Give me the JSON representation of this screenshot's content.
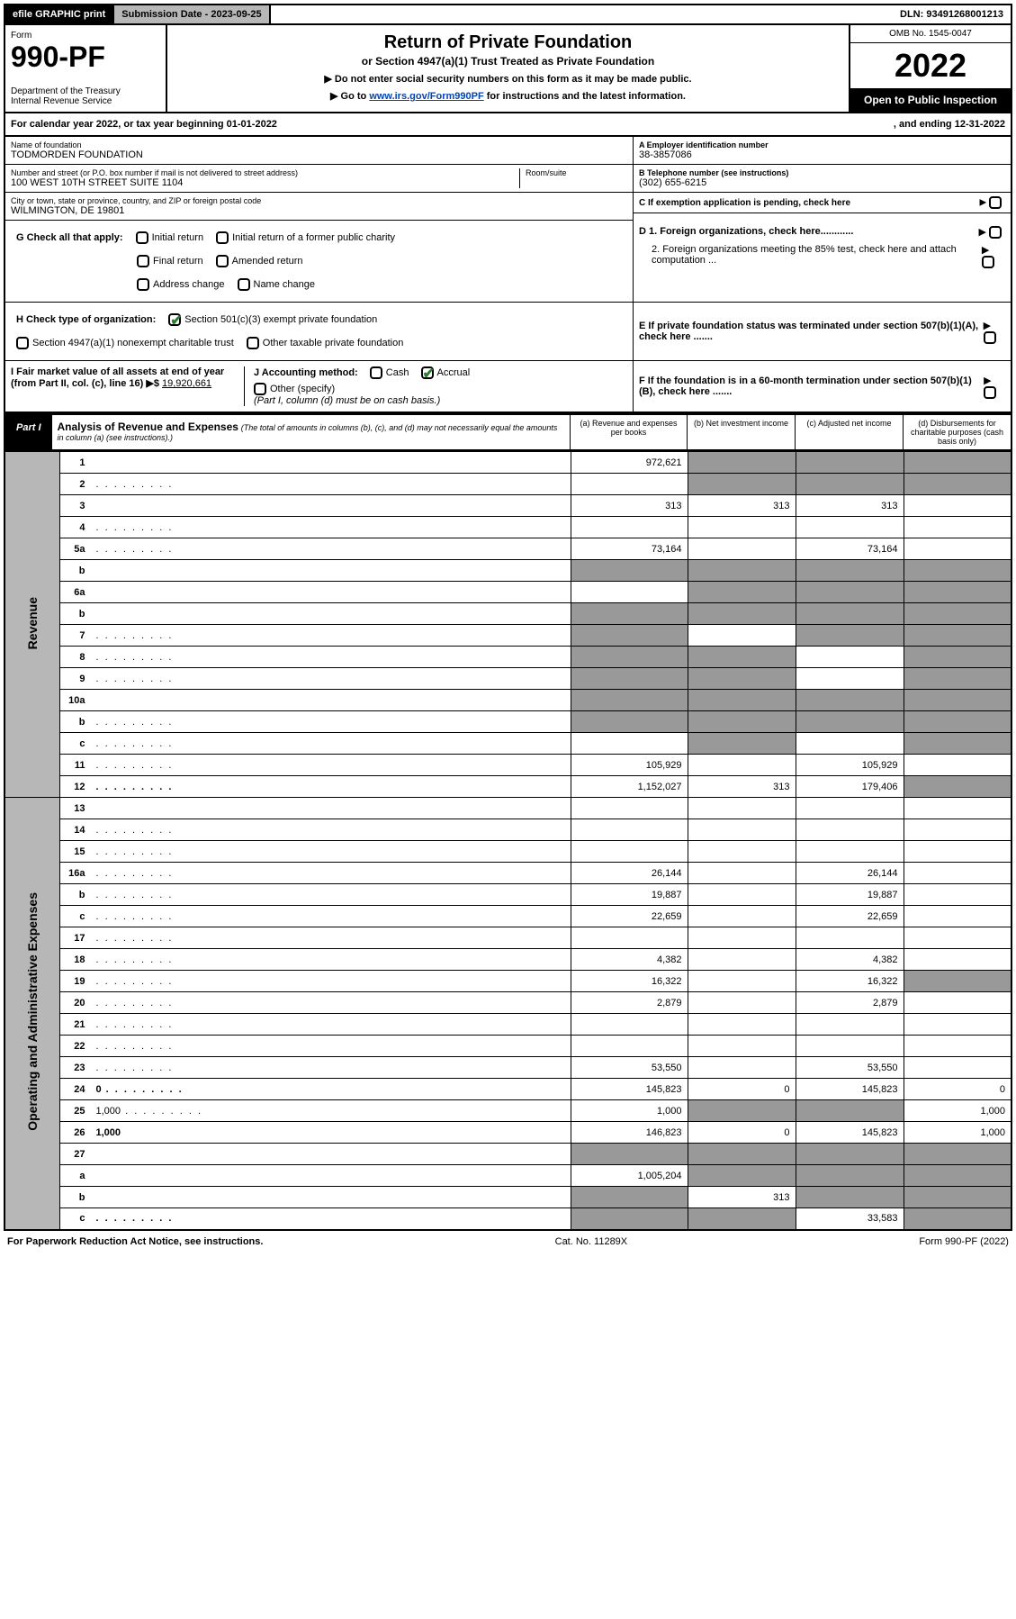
{
  "topbar": {
    "efile": "efile GRAPHIC print",
    "subdate_lbl": "Submission Date - ",
    "subdate": "2023-09-25",
    "dln_lbl": "DLN: ",
    "dln": "93491268001213"
  },
  "header": {
    "form_lbl": "Form",
    "form_no": "990-PF",
    "dept": "Department of the Treasury\nInternal Revenue Service",
    "title": "Return of Private Foundation",
    "subtitle": "or Section 4947(a)(1) Trust Treated as Private Foundation",
    "instr1": "▶ Do not enter social security numbers on this form as it may be made public.",
    "instr2_pre": "▶ Go to ",
    "instr2_link": "www.irs.gov/Form990PF",
    "instr2_post": " for instructions and the latest information.",
    "omb": "OMB No. 1545-0047",
    "year": "2022",
    "inspection": "Open to Public Inspection"
  },
  "calyear": {
    "text_pre": "For calendar year 2022, or tax year beginning ",
    "begin": "01-01-2022",
    "mid": ", and ending ",
    "end": "12-31-2022"
  },
  "entity": {
    "name_lbl": "Name of foundation",
    "name": "TODMORDEN FOUNDATION",
    "addr_lbl": "Number and street (or P.O. box number if mail is not delivered to street address)",
    "addr": "100 WEST 10TH STREET SUITE 1104",
    "room_lbl": "Room/suite",
    "city_lbl": "City or town, state or province, country, and ZIP or foreign postal code",
    "city": "WILMINGTON, DE  19801",
    "ein_lbl": "A Employer identification number",
    "ein": "38-3857086",
    "tel_lbl": "B Telephone number (see instructions)",
    "tel": "(302) 655-6215",
    "c_lbl": "C If exemption application is pending, check here"
  },
  "checks": {
    "g_lbl": "G Check all that apply:",
    "g_initial": "Initial return",
    "g_initial_former": "Initial return of a former public charity",
    "g_final": "Final return",
    "g_amended": "Amended return",
    "g_address": "Address change",
    "g_name": "Name change",
    "h_lbl": "H Check type of organization:",
    "h_501c3": "Section 501(c)(3) exempt private foundation",
    "h_4947": "Section 4947(a)(1) nonexempt charitable trust",
    "h_other": "Other taxable private foundation",
    "i_lbl": "I Fair market value of all assets at end of year (from Part II, col. (c), line 16) ▶$ ",
    "i_val": "19,920,661",
    "j_lbl": "J Accounting method:",
    "j_cash": "Cash",
    "j_accrual": "Accrual",
    "j_other": "Other (specify)",
    "j_note": "(Part I, column (d) must be on cash basis.)",
    "d1": "D 1. Foreign organizations, check here............",
    "d2": "2. Foreign organizations meeting the 85% test, check here and attach computation ...",
    "e": "E  If private foundation status was terminated under section 507(b)(1)(A), check here .......",
    "f": "F  If the foundation is in a 60-month termination under section 507(b)(1)(B), check here ......."
  },
  "part1": {
    "label": "Part I",
    "title": "Analysis of Revenue and Expenses",
    "note": "(The total of amounts in columns (b), (c), and (d) may not necessarily equal the amounts in column (a) (see instructions).)",
    "col_a": "(a)  Revenue and expenses per books",
    "col_b": "(b)  Net investment income",
    "col_c": "(c)  Adjusted net income",
    "col_d": "(d)  Disbursements for charitable purposes (cash basis only)"
  },
  "vlabels": {
    "revenue": "Revenue",
    "expenses": "Operating and Administrative Expenses"
  },
  "rows": [
    {
      "n": "1",
      "d": "",
      "a": "972,621",
      "b": "",
      "c": "",
      "db": true,
      "dc": true,
      "dd": true
    },
    {
      "n": "2",
      "d": "",
      "a": "",
      "b": "",
      "c": "",
      "db": true,
      "dc": true,
      "dd": true,
      "dots": true
    },
    {
      "n": "3",
      "d": "",
      "a": "313",
      "b": "313",
      "c": "313"
    },
    {
      "n": "4",
      "d": "",
      "a": "",
      "b": "",
      "c": "",
      "dots": true
    },
    {
      "n": "5a",
      "d": "",
      "a": "73,164",
      "b": "",
      "c": "73,164",
      "dots": true
    },
    {
      "n": "b",
      "d": "",
      "a": "",
      "b": "",
      "c": "",
      "da": true,
      "db": true,
      "dc": true,
      "dd": true
    },
    {
      "n": "6a",
      "d": "",
      "a": "",
      "b": "",
      "c": "",
      "db": true,
      "dc": true,
      "dd": true
    },
    {
      "n": "b",
      "d": "",
      "a": "",
      "b": "",
      "c": "",
      "da": true,
      "db": true,
      "dc": true,
      "dd": true
    },
    {
      "n": "7",
      "d": "",
      "a": "",
      "b": "",
      "c": "",
      "da": true,
      "dc": true,
      "dd": true,
      "dots": true
    },
    {
      "n": "8",
      "d": "",
      "a": "",
      "b": "",
      "c": "",
      "da": true,
      "db": true,
      "dd": true,
      "dots": true
    },
    {
      "n": "9",
      "d": "",
      "a": "",
      "b": "",
      "c": "",
      "da": true,
      "db": true,
      "dd": true,
      "dots": true
    },
    {
      "n": "10a",
      "d": "",
      "a": "",
      "b": "",
      "c": "",
      "da": true,
      "db": true,
      "dc": true,
      "dd": true
    },
    {
      "n": "b",
      "d": "",
      "a": "",
      "b": "",
      "c": "",
      "da": true,
      "db": true,
      "dc": true,
      "dd": true,
      "dots": true
    },
    {
      "n": "c",
      "d": "",
      "a": "",
      "b": "",
      "c": "",
      "db": true,
      "dd": true,
      "dots": true
    },
    {
      "n": "11",
      "d": "",
      "a": "105,929",
      "b": "",
      "c": "105,929",
      "dots": true
    },
    {
      "n": "12",
      "d": "",
      "a": "1,152,027",
      "b": "313",
      "c": "179,406",
      "bold": true,
      "dd": true,
      "dots": true
    },
    {
      "n": "13",
      "d": "",
      "a": "",
      "b": "",
      "c": ""
    },
    {
      "n": "14",
      "d": "",
      "a": "",
      "b": "",
      "c": "",
      "dots": true
    },
    {
      "n": "15",
      "d": "",
      "a": "",
      "b": "",
      "c": "",
      "dots": true
    },
    {
      "n": "16a",
      "d": "",
      "a": "26,144",
      "b": "",
      "c": "26,144",
      "dots": true
    },
    {
      "n": "b",
      "d": "",
      "a": "19,887",
      "b": "",
      "c": "19,887",
      "dots": true
    },
    {
      "n": "c",
      "d": "",
      "a": "22,659",
      "b": "",
      "c": "22,659",
      "dots": true
    },
    {
      "n": "17",
      "d": "",
      "a": "",
      "b": "",
      "c": "",
      "dots": true
    },
    {
      "n": "18",
      "d": "",
      "a": "4,382",
      "b": "",
      "c": "4,382",
      "dots": true
    },
    {
      "n": "19",
      "d": "",
      "a": "16,322",
      "b": "",
      "c": "16,322",
      "dd": true,
      "dots": true
    },
    {
      "n": "20",
      "d": "",
      "a": "2,879",
      "b": "",
      "c": "2,879",
      "dots": true
    },
    {
      "n": "21",
      "d": "",
      "a": "",
      "b": "",
      "c": "",
      "dots": true
    },
    {
      "n": "22",
      "d": "",
      "a": "",
      "b": "",
      "c": "",
      "dots": true
    },
    {
      "n": "23",
      "d": "",
      "a": "53,550",
      "b": "",
      "c": "53,550",
      "dots": true
    },
    {
      "n": "24",
      "d": "0",
      "a": "145,823",
      "b": "0",
      "c": "145,823",
      "bold": true,
      "dots": true
    },
    {
      "n": "25",
      "d": "1,000",
      "a": "1,000",
      "b": "",
      "c": "",
      "db": true,
      "dc": true,
      "dots": true
    },
    {
      "n": "26",
      "d": "1,000",
      "a": "146,823",
      "b": "0",
      "c": "145,823",
      "bold": true
    },
    {
      "n": "27",
      "d": "",
      "a": "",
      "b": "",
      "c": "",
      "da": true,
      "db": true,
      "dc": true,
      "dd": true
    },
    {
      "n": "a",
      "d": "",
      "a": "1,005,204",
      "b": "",
      "c": "",
      "bold": true,
      "db": true,
      "dc": true,
      "dd": true
    },
    {
      "n": "b",
      "d": "",
      "a": "",
      "b": "313",
      "c": "",
      "bold": true,
      "da": true,
      "dc": true,
      "dd": true
    },
    {
      "n": "c",
      "d": "",
      "a": "",
      "b": "",
      "c": "33,583",
      "bold": true,
      "da": true,
      "db": true,
      "dd": true,
      "dots": true
    }
  ],
  "footer": {
    "left": "For Paperwork Reduction Act Notice, see instructions.",
    "mid": "Cat. No. 11289X",
    "right": "Form 990-PF (2022)"
  },
  "colors": {
    "black": "#000000",
    "gray": "#b7b7b7",
    "darkgray": "#999999",
    "link": "#0645ad",
    "check": "#2e7d32"
  }
}
